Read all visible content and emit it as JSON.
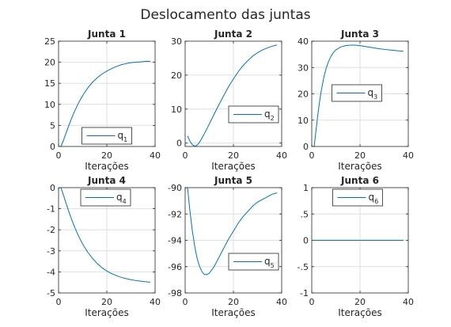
{
  "chart_data": {
    "title": "Deslocamento das juntas",
    "type": "line",
    "line_color": "#0072BD",
    "grid": true,
    "subplots": [
      {
        "title": "Junta 1",
        "xlabel": "Iterações",
        "xlim": [
          0,
          40
        ],
        "ylim": [
          0,
          25
        ],
        "xticks": [
          0,
          20,
          40
        ],
        "yticks": [
          0,
          5,
          10,
          15,
          20,
          25
        ],
        "legend": {
          "base": "q",
          "sub": "1",
          "loc": "lower-center"
        },
        "series": {
          "x": [
            1,
            2,
            3,
            4,
            5,
            6,
            7,
            8,
            9,
            10,
            12,
            14,
            16,
            18,
            20,
            22,
            24,
            26,
            28,
            30,
            32,
            34,
            36,
            38
          ],
          "y": [
            0,
            1.4,
            3.0,
            4.6,
            6.1,
            7.5,
            8.8,
            10.0,
            11.1,
            12.1,
            13.8,
            15.2,
            16.3,
            17.2,
            17.9,
            18.5,
            19.0,
            19.4,
            19.7,
            19.9,
            20.0,
            20.1,
            20.2,
            20.2
          ]
        }
      },
      {
        "title": "Junta 2",
        "xlabel": "Iterações",
        "xlim": [
          0,
          40
        ],
        "ylim": [
          -1,
          30
        ],
        "xticks": [
          0,
          20,
          40
        ],
        "yticks": [
          0,
          10,
          20,
          30
        ],
        "legend": {
          "base": "q",
          "sub": "2",
          "loc": "right"
        },
        "series": {
          "x": [
            1,
            2,
            3,
            4,
            5,
            6,
            7,
            8,
            10,
            12,
            14,
            16,
            18,
            20,
            22,
            24,
            26,
            28,
            30,
            32,
            34,
            36,
            38
          ],
          "y": [
            2.1,
            0.5,
            -0.5,
            -0.9,
            -0.6,
            0.3,
            1.5,
            2.8,
            5.6,
            8.5,
            11.3,
            14.0,
            16.6,
            18.9,
            21.0,
            22.8,
            24.3,
            25.6,
            26.6,
            27.4,
            28.0,
            28.5,
            28.9
          ]
        }
      },
      {
        "title": "Junta 3",
        "xlabel": "Iterações",
        "xlim": [
          0,
          40
        ],
        "ylim": [
          0,
          40
        ],
        "xticks": [
          0,
          20,
          40
        ],
        "yticks": [
          0,
          10,
          20,
          30,
          40
        ],
        "legend": {
          "base": "q",
          "sub": "3",
          "loc": "center"
        },
        "series": {
          "x": [
            1,
            2,
            3,
            4,
            5,
            6,
            7,
            8,
            9,
            10,
            12,
            14,
            16,
            18,
            20,
            22,
            24,
            26,
            28,
            30,
            32,
            34,
            36,
            38
          ],
          "y": [
            0,
            8,
            15.5,
            21.5,
            26.2,
            29.8,
            32.4,
            34.3,
            35.7,
            36.7,
            37.8,
            38.3,
            38.5,
            38.5,
            38.3,
            38.0,
            37.7,
            37.4,
            37.1,
            36.9,
            36.7,
            36.5,
            36.3,
            36.2
          ]
        }
      },
      {
        "title": "Junta 4",
        "xlabel": "Iterações",
        "xlim": [
          0,
          40
        ],
        "ylim": [
          -5,
          0
        ],
        "xticks": [
          0,
          20,
          40
        ],
        "yticks": [
          -5,
          -4,
          -3,
          -2,
          -1,
          0
        ],
        "legend": {
          "base": "q",
          "sub": "4",
          "loc": "top-right"
        },
        "series": {
          "x": [
            1,
            2,
            3,
            4,
            5,
            6,
            7,
            8,
            9,
            10,
            12,
            14,
            16,
            18,
            20,
            22,
            24,
            26,
            28,
            30,
            32,
            34,
            36,
            38
          ],
          "y": [
            0,
            -0.35,
            -0.7,
            -1.05,
            -1.38,
            -1.68,
            -1.96,
            -2.22,
            -2.46,
            -2.68,
            -3.05,
            -3.35,
            -3.6,
            -3.8,
            -3.96,
            -4.08,
            -4.18,
            -4.26,
            -4.32,
            -4.37,
            -4.41,
            -4.44,
            -4.47,
            -4.49
          ]
        }
      },
      {
        "title": "Junta 5",
        "xlabel": "Iterações",
        "xlim": [
          0,
          40
        ],
        "ylim": [
          -98,
          -90
        ],
        "xticks": [
          0,
          20,
          40
        ],
        "yticks": [
          -98,
          -96,
          -94,
          -92,
          -90
        ],
        "legend": {
          "base": "q",
          "sub": "5",
          "loc": "bottom-right"
        },
        "series": {
          "x": [
            1,
            2,
            3,
            4,
            5,
            6,
            7,
            8,
            9,
            10,
            12,
            14,
            16,
            18,
            20,
            22,
            24,
            26,
            28,
            30,
            32,
            34,
            36,
            38
          ],
          "y": [
            -90,
            -91.8,
            -93.3,
            -94.5,
            -95.4,
            -96.0,
            -96.4,
            -96.6,
            -96.6,
            -96.5,
            -96.0,
            -95.3,
            -94.6,
            -93.9,
            -93.3,
            -92.7,
            -92.2,
            -91.8,
            -91.4,
            -91.1,
            -90.9,
            -90.7,
            -90.5,
            -90.4
          ]
        }
      },
      {
        "title": "Junta 6",
        "xlabel": "Iterações",
        "xlim": [
          0,
          40
        ],
        "ylim": [
          -1,
          1
        ],
        "xticks": [
          0,
          20,
          40
        ],
        "yticks": [
          -1,
          -0.5,
          0,
          0.5,
          1
        ],
        "legend": {
          "base": "q",
          "sub": "6",
          "loc": "top-center"
        },
        "series": {
          "x": [
            1,
            38
          ],
          "y": [
            0,
            0
          ]
        }
      }
    ]
  }
}
